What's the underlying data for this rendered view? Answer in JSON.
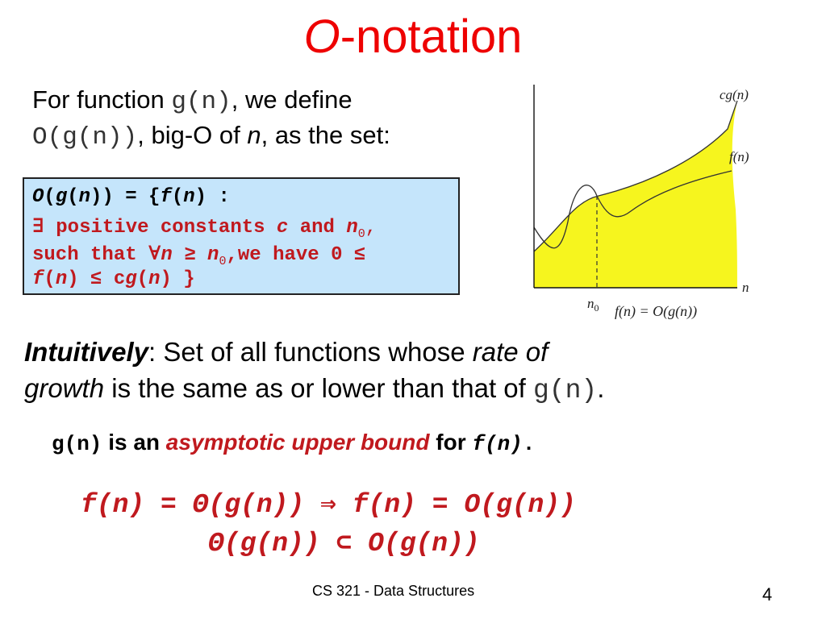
{
  "slide": {
    "title": {
      "symbol": "O",
      "text": "-notation"
    },
    "intro": {
      "line1_prefix": "For function ",
      "line1_func": "g(n)",
      "line1_suffix": ", we define",
      "line2_set": "O(g(n))",
      "line2_mid": ", big-O of ",
      "line2_var": "n",
      "line2_suffix": ", as the set:"
    },
    "definition": {
      "line1": {
        "a": "O",
        "b": "(",
        "c": "g",
        "d": "(",
        "e": "n",
        "f": ")) = {",
        "g": "f",
        "h": "(",
        "i": "n",
        "j": ") :"
      },
      "line2": {
        "exists": "∃",
        "text": " positive constants ",
        "c": "c",
        "and": " and ",
        "n": "n",
        "sub": "0",
        "comma": ","
      },
      "line3": {
        "a": "such that ",
        "forall": "∀",
        "n": "n",
        "geq": " ≥  ",
        "n0": "n",
        "sub": "0",
        "b": ",we have 0 ",
        "leq": "≤"
      },
      "line4": {
        "a": "f",
        "b": "(",
        "c": "n",
        "d": ") ",
        "leq": "≤",
        "e": " c",
        "f": "g",
        "g": "(",
        "h": "n",
        "i": ") }"
      }
    },
    "graph": {
      "label_cg": "cg(n)",
      "label_f": "f(n)",
      "label_n": "n",
      "label_n0": "n",
      "label_n0_sub": "0",
      "caption": "f(n) = O(g(n))",
      "fill_color": "#f6f51e"
    },
    "intuition": {
      "lead": "Intuitively",
      "colon": ": Set of all functions whose ",
      "rate": "rate of",
      "growth": "growth",
      "rest": " is the same as or lower than that of ",
      "func": "g(n)",
      "period": "."
    },
    "upper_bound": {
      "g": "g(n)",
      "is_an": " is an ",
      "phrase": "asymptotic upper bound",
      "for": " for ",
      "f": "f(n)",
      "period": "."
    },
    "formula1": "f(n) = Θ(g(n)) ⇒ f(n) = O(g(n))",
    "formula2": "Θ(g(n)) ⊂ O(g(n))",
    "footer": "CS 321 - Data Structures",
    "page_number": "4"
  }
}
